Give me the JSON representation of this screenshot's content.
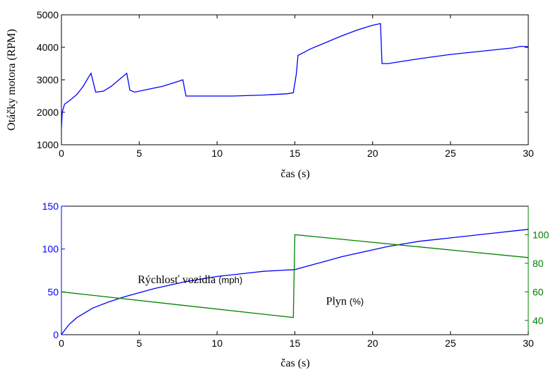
{
  "chart_data": [
    {
      "type": "line",
      "ylabel": "Otáčky motora (RPM)",
      "xlabel": "čas (s)",
      "xlim": [
        0,
        30
      ],
      "ylim": [
        1000,
        5000
      ],
      "xticks": [
        "0",
        "5",
        "10",
        "15",
        "20",
        "25",
        "30"
      ],
      "yticks": [
        "1000",
        "2000",
        "3000",
        "4000",
        "5000"
      ],
      "grid": false,
      "series": [
        {
          "color": "#0000ff",
          "x": [
            0,
            0.05,
            0.2,
            0.5,
            1.0,
            1.4,
            1.7,
            1.9,
            2.2,
            2.7,
            3.2,
            3.7,
            4.2,
            4.4,
            4.7,
            5.5,
            6.5,
            7.5,
            7.8,
            8.0,
            9,
            11,
            13,
            14.5,
            14.9,
            15.1,
            15.2,
            16,
            17,
            18,
            19,
            20,
            20.5,
            20.6,
            21,
            23,
            25,
            27,
            29,
            29.5,
            30
          ],
          "y": [
            1500,
            2000,
            2250,
            2350,
            2550,
            2800,
            3050,
            3200,
            2620,
            2650,
            2800,
            3000,
            3200,
            2680,
            2620,
            2700,
            2800,
            2950,
            3000,
            2500,
            2500,
            2500,
            2530,
            2570,
            2600,
            3200,
            3750,
            3950,
            4150,
            4350,
            4530,
            4680,
            4730,
            3500,
            3500,
            3650,
            3780,
            3880,
            3980,
            4030,
            4020
          ]
        }
      ]
    },
    {
      "type": "line",
      "xlabel": "čas (s)",
      "xlim": [
        0,
        30
      ],
      "ylim_left": [
        0,
        150
      ],
      "ylim_right": [
        30,
        120
      ],
      "xticks": [
        "0",
        "5",
        "10",
        "15",
        "20",
        "25",
        "30"
      ],
      "yticks_left": [
        "0",
        "50",
        "100",
        "150"
      ],
      "yticks_right": [
        "40",
        "60",
        "80",
        "100"
      ],
      "grid": false,
      "annotations": [
        {
          "main": "Rýchlosť vozidla",
          "unit": "(mph)",
          "x": 4.9,
          "y": 65
        },
        {
          "main": "Plyn",
          "unit": "(%)",
          "x": 17.0,
          "y": 40
        }
      ],
      "series": [
        {
          "axis": "left",
          "color": "#0000ff",
          "x": [
            0,
            0.2,
            0.5,
            1,
            2,
            3,
            4,
            5,
            6,
            7,
            8,
            9,
            10,
            11,
            12,
            13,
            14,
            15,
            16,
            17,
            18,
            19,
            20,
            21,
            22,
            23,
            24,
            25,
            26,
            27,
            28,
            29,
            30
          ],
          "y": [
            0,
            5,
            12,
            20,
            31,
            38,
            44,
            49,
            54,
            58,
            62,
            65,
            68,
            70,
            72,
            74,
            75,
            76,
            81,
            86,
            91,
            95,
            99,
            103,
            106,
            109,
            111,
            113,
            115,
            117,
            119,
            121,
            123
          ]
        },
        {
          "axis": "right",
          "color": "#008000",
          "x": [
            0,
            14.9,
            15.0,
            30
          ],
          "y": [
            60,
            42,
            100,
            84
          ]
        }
      ]
    }
  ]
}
